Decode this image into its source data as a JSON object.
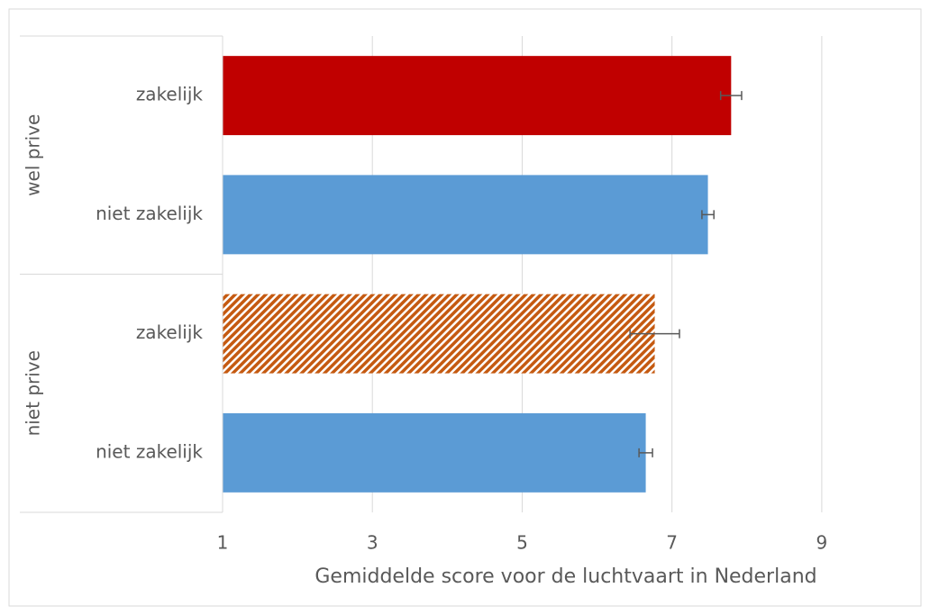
{
  "chart_data": {
    "type": "bar",
    "xlabel": "Gemiddelde score voor de luchtvaart in Nederland",
    "groups": [
      {
        "name": "wel prive",
        "categories": [
          "zakelijk",
          "niet zakelijk"
        ],
        "values": [
          7.79,
          7.48
        ],
        "errors": [
          0.14,
          0.08
        ],
        "colors": [
          "#c00000",
          "#5b9bd5"
        ],
        "hatched": [
          false,
          false
        ]
      },
      {
        "name": "niet prive",
        "categories": [
          "zakelijk",
          "niet zakelijk"
        ],
        "values": [
          6.77,
          6.65
        ],
        "errors": [
          0.33,
          0.09
        ],
        "colors": [
          "#c55a11",
          "#5b9bd5"
        ],
        "hatched": [
          true,
          false
        ]
      }
    ],
    "xlim": [
      1,
      10
    ],
    "xticks": [
      1,
      3,
      5,
      7,
      9
    ],
    "grid": true
  }
}
